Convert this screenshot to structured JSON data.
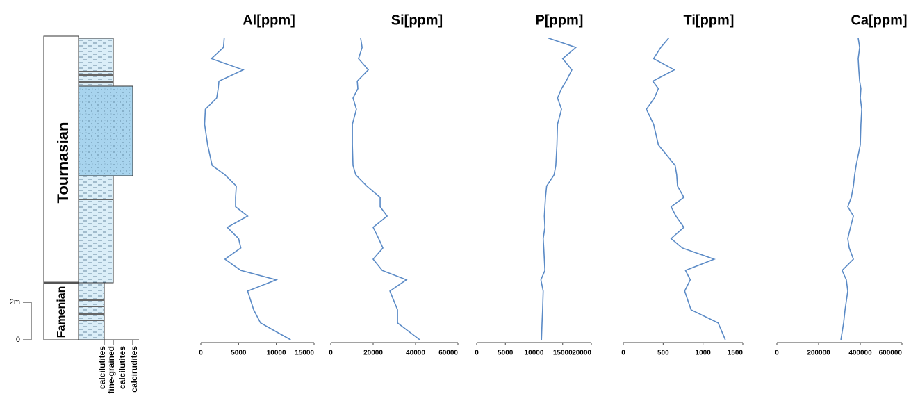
{
  "log": {
    "units": [
      "Tournasian",
      "Famenian"
    ],
    "lithology": [
      "calcilutites",
      "fine-grained",
      "calcilutites",
      "calcirudites"
    ],
    "ylim": [
      0,
      16.2
    ],
    "yticks": [
      0,
      {
        "value": 2,
        "label": "2m"
      }
    ]
  },
  "chart_data": [
    {
      "type": "line",
      "title": "Al[ppm]",
      "color": "#5a8ac6",
      "xlim": [
        0,
        15000
      ],
      "xticks": [
        0,
        5000,
        10000,
        15000
      ],
      "ylim": [
        0,
        16.2
      ],
      "y": [
        0,
        0.9,
        1.6,
        2.6,
        3.2,
        3.7,
        4.3,
        4.9,
        5.4,
        6.0,
        6.6,
        7.1,
        7.6,
        8.2,
        8.8,
        9.3,
        10.4,
        11.5,
        12.3,
        12.9,
        13.4,
        13.8,
        14.4,
        15.0,
        15.6,
        16.1
      ],
      "values": [
        11900,
        7900,
        7000,
        6200,
        10000,
        5300,
        3200,
        5300,
        5000,
        3500,
        6200,
        4600,
        4600,
        4700,
        3200,
        1500,
        900,
        500,
        600,
        2100,
        2300,
        2400,
        5600,
        1400,
        3000,
        3100
      ]
    },
    {
      "type": "line",
      "title": "Si[ppm]",
      "color": "#5a8ac6",
      "xlim": [
        0,
        60000
      ],
      "xticks": [
        0,
        20000,
        40000,
        60000
      ],
      "ylim": [
        0,
        16.2
      ],
      "y": [
        0,
        0.9,
        1.6,
        2.6,
        3.2,
        3.7,
        4.3,
        4.9,
        5.4,
        6.0,
        6.6,
        7.1,
        7.6,
        8.2,
        8.8,
        9.3,
        10.4,
        11.5,
        12.3,
        12.9,
        13.4,
        13.8,
        14.4,
        15.0,
        15.6,
        16.1
      ],
      "values": [
        42000,
        31500,
        31500,
        27900,
        35700,
        24300,
        20000,
        24600,
        22600,
        20000,
        26600,
        23300,
        23300,
        17000,
        11800,
        10500,
        10200,
        10200,
        12100,
        10500,
        12800,
        12500,
        17700,
        13100,
        14800,
        14100
      ]
    },
    {
      "type": "line",
      "title": "P[ppm]",
      "color": "#5a8ac6",
      "xlim": [
        0,
        20000
      ],
      "xticks": [
        0,
        5000,
        10000,
        15000,
        20000
      ],
      "ylim": [
        0,
        16.2
      ],
      "y": [
        0,
        0.9,
        1.6,
        2.6,
        3.2,
        3.7,
        4.3,
        4.9,
        5.4,
        6.0,
        6.6,
        7.1,
        7.6,
        8.2,
        8.8,
        9.3,
        10.4,
        11.5,
        12.3,
        12.9,
        13.4,
        13.8,
        14.4,
        15.0,
        15.6,
        16.1
      ],
      "values": [
        11300,
        11400,
        11500,
        11600,
        11200,
        11900,
        11800,
        11700,
        11600,
        11900,
        11800,
        11900,
        12000,
        12200,
        13500,
        13800,
        14000,
        14100,
        14800,
        14100,
        14800,
        15600,
        16600,
        15000,
        17300,
        12500
      ]
    },
    {
      "type": "line",
      "title": "Ti[ppm]",
      "color": "#5a8ac6",
      "xlim": [
        0,
        1500
      ],
      "xticks": [
        0,
        500,
        1000,
        1500
      ],
      "ylim": [
        0,
        16.2
      ],
      "y": [
        0,
        0.9,
        1.6,
        2.6,
        3.2,
        3.7,
        4.3,
        4.9,
        5.4,
        6.0,
        6.6,
        7.1,
        7.6,
        8.2,
        8.8,
        9.3,
        10.4,
        11.5,
        12.3,
        12.9,
        13.4,
        13.8,
        14.4,
        15.0,
        15.6,
        16.1
      ],
      "values": [
        1280,
        1190,
        850,
        770,
        840,
        780,
        1140,
        740,
        600,
        760,
        660,
        600,
        760,
        680,
        670,
        650,
        440,
        380,
        290,
        390,
        440,
        370,
        640,
        380,
        470,
        570
      ]
    },
    {
      "type": "line",
      "title": "Ca[ppm]",
      "color": "#5a8ac6",
      "xlim": [
        0,
        600000
      ],
      "xticks": [
        0,
        200000,
        400000,
        600000
      ],
      "ylim": [
        0,
        16.2
      ],
      "y": [
        0,
        0.9,
        1.6,
        2.6,
        3.2,
        3.7,
        4.3,
        4.9,
        5.4,
        6.0,
        6.6,
        7.1,
        7.6,
        8.2,
        8.8,
        9.3,
        10.4,
        11.5,
        12.3,
        12.9,
        13.4,
        13.8,
        14.4,
        15.0,
        15.6,
        16.1
      ],
      "values": [
        307000,
        320000,
        327000,
        340000,
        333000,
        313000,
        367000,
        347000,
        340000,
        353000,
        367000,
        340000,
        357000,
        367000,
        373000,
        380000,
        400000,
        403000,
        407000,
        400000,
        403000,
        397000,
        393000,
        390000,
        397000,
        390000
      ]
    }
  ]
}
